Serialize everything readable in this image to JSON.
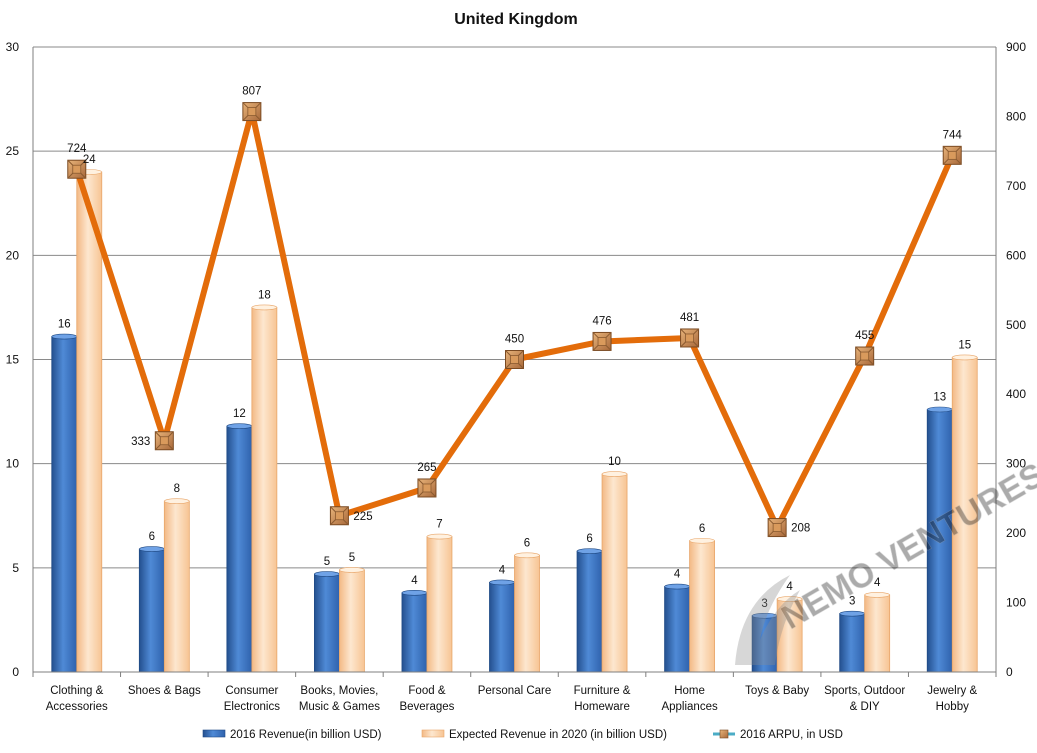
{
  "chart_data": {
    "type": "bar",
    "title": "United Kingdom",
    "xlabel": "",
    "ylabel": "",
    "categories": [
      [
        "Clothing &",
        "Accessories"
      ],
      [
        "Shoes & Bags"
      ],
      [
        "Consumer",
        "Electronics"
      ],
      [
        "Books, Movies,",
        "Music & Games"
      ],
      [
        "Food &",
        "Beverages"
      ],
      [
        "Personal Care"
      ],
      [
        "Furniture &",
        "Homeware"
      ],
      [
        "Home",
        "Appliances"
      ],
      [
        "Toys & Baby"
      ],
      [
        "Sports, Outdoor",
        "& DIY"
      ],
      [
        "Jewelry &",
        "Hobby"
      ]
    ],
    "ylim": [
      0,
      30
    ],
    "y_ticks": [
      0,
      5,
      10,
      15,
      20,
      25,
      30
    ],
    "y2lim": [
      0,
      900
    ],
    "y2_ticks": [
      0,
      100,
      200,
      300,
      400,
      500,
      600,
      700,
      800,
      900
    ],
    "grid": true,
    "legend_position": "bottom",
    "series": [
      {
        "name": "2016 Revenue(in billion USD)",
        "kind": "bar",
        "axis": "left",
        "color": "#3a6fbf",
        "values": [
          16.1,
          5.9,
          11.8,
          4.7,
          3.8,
          4.3,
          5.8,
          4.1,
          2.7,
          2.8,
          12.6
        ],
        "labels": [
          "16",
          "6",
          "12",
          "5",
          "4",
          "4",
          "6",
          "4",
          "3",
          "3",
          "13"
        ]
      },
      {
        "name": "Expected Revenue in 2020 (in billion USD)",
        "kind": "bar",
        "axis": "left",
        "color": "#fcd5a6",
        "values": [
          24.0,
          8.2,
          17.5,
          4.9,
          6.5,
          5.6,
          9.5,
          6.3,
          3.5,
          3.7,
          15.1
        ],
        "labels": [
          "24",
          "8",
          "18",
          "5",
          "7",
          "6",
          "10",
          "6",
          "4",
          "4",
          "15"
        ]
      },
      {
        "name": "2016 ARPU, in USD",
        "kind": "line",
        "axis": "right",
        "color": "#e36c0a",
        "marker_color": "#c0824a",
        "values": [
          724,
          333,
          807,
          225,
          265,
          450,
          476,
          481,
          208,
          455,
          744
        ],
        "labels": [
          "724",
          "333",
          "807",
          "225",
          "265",
          "450",
          "476",
          "481",
          "208",
          "455",
          "744"
        ]
      }
    ]
  }
}
